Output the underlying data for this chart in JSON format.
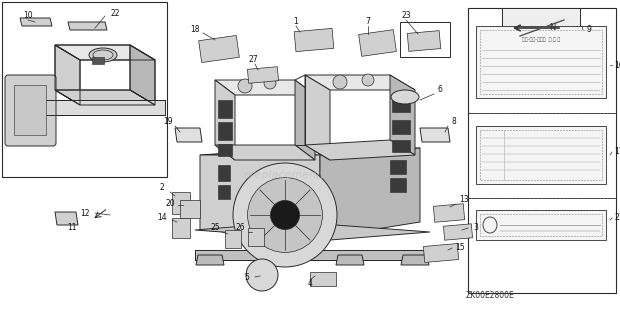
{
  "bg_color": "#ffffff",
  "fig_width": 6.2,
  "fig_height": 3.1,
  "dpi": 100,
  "watermark": "ereplacementparts.com",
  "part_code": "ZK00E2800E",
  "line_color": "#2a2a2a",
  "fill_light": "#e8e8e8",
  "fill_mid": "#d0d0d0",
  "fill_dark": "#b8b8b8",
  "fill_black": "#1a1a1a"
}
